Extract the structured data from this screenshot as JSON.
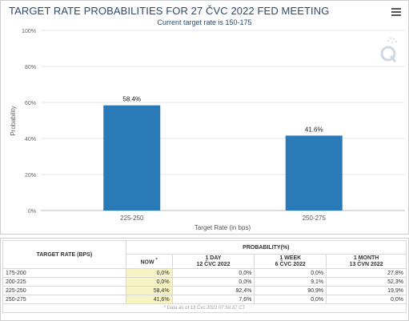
{
  "header": {
    "title": "TARGET RATE PROBABILITIES FOR 27 ČVC 2022 FED MEETING",
    "subtitle": "Current target rate is 150-175"
  },
  "chart_data": {
    "type": "bar",
    "title": "TARGET RATE PROBABILITIES FOR 27 ČVC 2022 FED MEETING",
    "subtitle": "Current target rate is 150-175",
    "categories": [
      "225-250",
      "250-275"
    ],
    "values": [
      58.4,
      41.6
    ],
    "data_labels": [
      "58.4%",
      "41.6%"
    ],
    "xlabel": "Target Rate (in bps)",
    "ylabel": "Probability",
    "ylim": [
      0,
      100
    ],
    "yticks": [
      "0%",
      "20%",
      "40%",
      "60%",
      "80%",
      "100%"
    ],
    "grid": true,
    "bar_color": "#2a7ab8"
  },
  "table": {
    "col_rate_header": "TARGET RATE (BPS)",
    "prob_header": "PROBABILITY(%)",
    "now_header": "NOW",
    "now_marker": "*",
    "col_day": {
      "line1": "1 DAY",
      "line2": "12 ČVC 2022"
    },
    "col_week": {
      "line1": "1 WEEK",
      "line2": "6 ČVC 2022"
    },
    "col_month": {
      "line1": "1 MONTH",
      "line2": "13 ČVN 2022"
    },
    "rows": [
      {
        "rate": "175-200",
        "now": "0,0%",
        "day": "0,0%",
        "week": "0,0%",
        "month": "27,8%"
      },
      {
        "rate": "200-225",
        "now": "0,0%",
        "day": "0,0%",
        "week": "9,1%",
        "month": "52,3%"
      },
      {
        "rate": "225-250",
        "now": "58,4%",
        "day": "92,4%",
        "week": "90,9%",
        "month": "19,9%"
      },
      {
        "rate": "250-275",
        "now": "41,6%",
        "day": "7,6%",
        "week": "0,0%",
        "month": "0,0%"
      }
    ],
    "footnote": "* Data as of 13 Čvc 2022 07:50:37 CT"
  },
  "icons": {
    "menu": "hamburger-menu-icon",
    "watermark": "q-logo-icon"
  },
  "colors": {
    "bar": "#2a7ab8",
    "now_highlight": "#f7f3c2",
    "title": "#2c4a6e"
  }
}
